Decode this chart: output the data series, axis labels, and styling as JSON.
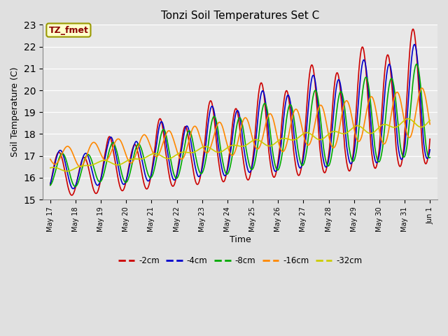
{
  "title": "Tonzi Soil Temperatures Set C",
  "xlabel": "Time",
  "ylabel": "Soil Temperature (C)",
  "ylim": [
    15.0,
    23.0
  ],
  "yticks": [
    15.0,
    16.0,
    17.0,
    18.0,
    19.0,
    20.0,
    21.0,
    22.0,
    23.0
  ],
  "legend_label": "TZ_fmet",
  "series_labels": [
    "-2cm",
    "-4cm",
    "-8cm",
    "-16cm",
    "-32cm"
  ],
  "series_colors": [
    "#cc0000",
    "#0000cc",
    "#00aa00",
    "#ff8800",
    "#cccc00"
  ],
  "background_color": "#e0e0e0",
  "plot_bg_color": "#e8e8e8",
  "xtick_labels": [
    "May 17",
    "May 18",
    "May 19",
    "May 20",
    "May 21",
    "May 22",
    "May 23",
    "May 24",
    "May 25",
    "May 26",
    "May 27",
    "May 28",
    "May 29",
    "May 30",
    "May 31",
    "Jun 1"
  ],
  "xtick_positions": [
    0,
    1,
    2,
    3,
    4,
    5,
    6,
    7,
    8,
    9,
    10,
    11,
    12,
    13,
    14,
    15
  ]
}
